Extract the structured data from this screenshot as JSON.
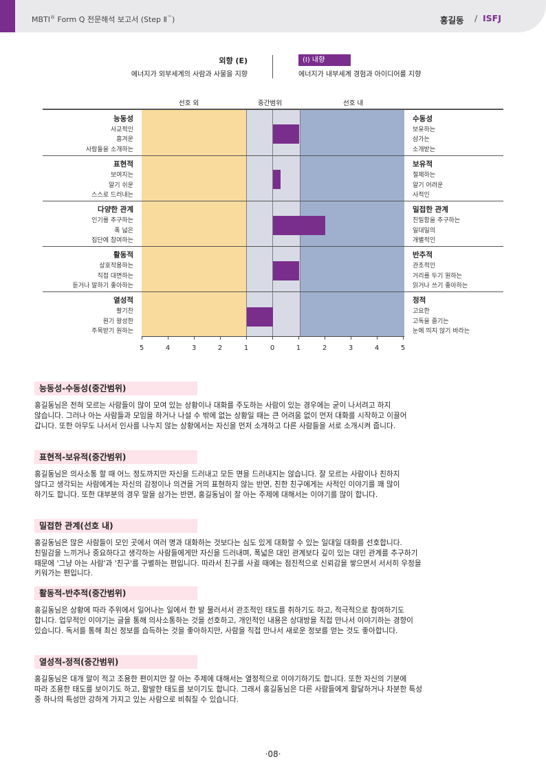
{
  "header": {
    "title_main": "MBTI",
    "title_reg": "®",
    "title_rest": " Form Q  전문해석 보고서 (Step  Ⅱ",
    "title_tm": "™",
    "title_close": ")",
    "name": "홍길동",
    "slash": "/",
    "type": "ISFJ",
    "accent_color": "#7a2e8c"
  },
  "legend": {
    "e_title": "외향 (E)",
    "e_desc": "에너지가 외부세계의 사람과 사물을 지향",
    "i_title": "(I) 내향",
    "i_desc": "에너지가 내부세계 경험과 아이디어를 지향",
    "zone_out": "선호 외",
    "zone_mid": "중간범위",
    "zone_in": "선호 내"
  },
  "chart_data": {
    "type": "bar",
    "scale_ticks": [
      "5",
      "4",
      "3",
      "2",
      "1",
      "0",
      "1",
      "2",
      "3",
      "4",
      "5"
    ],
    "zones": {
      "out_color": "#f9dc9d",
      "mid_color": "#d8dbe6",
      "in_color": "#9fb0cf"
    },
    "rows": [
      {
        "left_pole": "능동성",
        "left_facets": [
          "사교적인",
          "흥겨운",
          "사람들을 소개하는"
        ],
        "right_pole": "수동성",
        "right_facets": [
          "보유하는",
          "삼가는",
          "소개받는"
        ],
        "value": 1
      },
      {
        "left_pole": "표현적",
        "left_facets": [
          "보여지는",
          "알기 쉬운",
          "스스로 드러내는"
        ],
        "right_pole": "보유적",
        "right_facets": [
          "절제하는",
          "알기 어려운",
          "사적인"
        ],
        "value": 0.3
      },
      {
        "left_pole": "다양한 관계",
        "left_facets": [
          "인기를 추구하는",
          "폭 넓은",
          "집단에 참여하는"
        ],
        "right_pole": "밀접한 관계",
        "right_facets": [
          "친밀함을 추구하는",
          "일대일의",
          "개별적인"
        ],
        "value": 2
      },
      {
        "left_pole": "활동적",
        "left_facets": [
          "상호작용하는",
          "직접 대면하는",
          "듣거나 말하기 좋아하는"
        ],
        "right_pole": "반추적",
        "right_facets": [
          "관조적인",
          "거리를 두기 원하는",
          "읽거나 쓰기 좋아하는"
        ],
        "value": 1
      },
      {
        "left_pole": "열성적",
        "left_facets": [
          "활기찬",
          "원기 왕성한",
          "주목받기 원하는"
        ],
        "right_pole": "정적",
        "right_facets": [
          "고요한",
          "고독을 즐기는",
          "눈에 띄지 않기 바라는"
        ],
        "value": -1
      }
    ]
  },
  "sections": [
    {
      "heading": "능동성-수동성(중간범위)",
      "lines": [
        "홍길동님은 전혀 모르는 사람들이 많이 모여 있는 상황이나 대화를 주도하는 사람이 있는 경우에는 굳이 나서려고 하지",
        "않습니다. 그러나 아는 사람들과 모임을 하거나 나설 수 밖에 없는 상황일 때는 큰 어려움 없이 먼저 대화를 시작하고 이끌어",
        "갑니다. 또한 아무도 나서서 인사를 나누지 않는 상황에서는 자신을 먼저 소개하고 다른 사람들을 서로 소개시켜 줍니다."
      ]
    },
    {
      "heading": "표현적-보유적(중간범위)",
      "lines": [
        "홍길동님은 의사소통 할 때 어느 정도까지만 자신을 드러내고 모든 면을 드러내지는 않습니다. 잘 모르는 사람이나 친하지",
        "않다고 생각되는 사람에게는 자신의 감정이나 의견을 거의 표현하지 않는 반면, 친한 친구에게는 사적인 이야기를 꽤 많이",
        "하기도 합니다. 또한 대부분의 경우 말을 삼가는 반면, 홍길동님이 잘 아는 주제에 대해서는 이야기를 많이 합니다."
      ]
    },
    {
      "heading": "밀접한 관계(선호 내)",
      "lines": [
        "홍길동님은 많은 사람들이 모인 곳에서 여러 명과 대화하는 것보다는 심도 있게 대화할 수 있는 일대일 대화를 선호합니다.",
        "친밀감을 느끼거나 중요하다고 생각하는 사람들에게만 자신을 드러내며, 폭넓은 대인 관계보다 깊이 있는 대인 관계를 추구하기",
        "때문에 '그냥 아는 사람'과 '친구'를 구별하는 편입니다. 따라서 친구를 사귈 때에는 점진적으로 신뢰감을 쌓으면서 서서히 우정을",
        "키워가는 편입니다."
      ]
    },
    {
      "heading": "활동적-반추적(중간범위)",
      "lines": [
        "홍길동님은 상황에 따라 주위에서 일어나는 일에서 한 발 물러서서 관조적인 태도를 취하기도 하고, 적극적으로 참여하기도",
        "합니다. 업무적인 이야기는 글을 통해 의사소통하는 것을 선호하고, 개인적인 내용은 상대방을 직접 만나서 이야기하는 경향이",
        "있습니다. 독서를 통해 최신 정보를 습득하는 것을 좋아하지만, 사람을 직접 만나서 새로운 정보를 얻는 것도 좋아합니다."
      ]
    },
    {
      "heading": "열성적-정적(중간범위)",
      "lines": [
        "홍길동님은 대개 말이 적고 조용한 편이지만 잘 아는 주제에 대해서는 열정적으로 이야기하기도 합니다. 또한 자신의 기분에",
        "따라 조용한 태도를 보이기도 하고, 활발한 태도를 보이기도 합니다. 그래서 홍길동님은 다른 사람들에게 활달하거나 차분한 특성",
        "중 하나의 특성만 강하게 가지고 있는 사람으로 비춰질 수 있습니다."
      ]
    }
  ],
  "page_number": "·08·"
}
